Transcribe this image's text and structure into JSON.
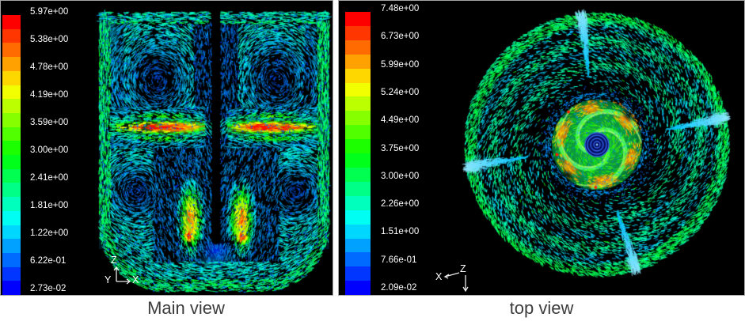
{
  "figure": {
    "background": "#ffffff",
    "panel_background": "#000000"
  },
  "panels": [
    {
      "caption": "Main view",
      "legend": {
        "values": [
          "5.97e+00",
          "5.38e+00",
          "4.78e+00",
          "4.19e+00",
          "3.59e+00",
          "3.00e+00",
          "2.41e+00",
          "1.81e+00",
          "1.22e+00",
          "6.22e-01",
          "2.73e-02"
        ]
      },
      "triad": {
        "z": "Z",
        "y": "Y",
        "x": "X"
      }
    },
    {
      "caption": "top view",
      "legend": {
        "values": [
          "7.48e+00",
          "6.73e+00",
          "5.99e+00",
          "5.24e+00",
          "4.49e+00",
          "3.75e+00",
          "3.00e+00",
          "2.26e+00",
          "1.51e+00",
          "7.66e-01",
          "2.09e-02"
        ]
      },
      "triad": {
        "x": "X",
        "z": "Z"
      }
    }
  ],
  "colors": {
    "legend_text": "#ffffff",
    "caption_text": "#3d3d3d",
    "colormap_max": "#ff0000",
    "colormap_mid": "#00ff00",
    "colormap_min": "#0000ff"
  },
  "chart_data": [
    {
      "type": "vector-field",
      "view": "Main view",
      "field": "velocity vectors colored by magnitude",
      "colormap": "rainbow, 20 discrete bands, blue = min, red = max",
      "scale_ticks": [
        5.97,
        5.38,
        4.78,
        4.19,
        3.59,
        3.0,
        2.41,
        1.81,
        1.22,
        0.622,
        0.0273
      ],
      "scale_min": 0.0273,
      "scale_max": 5.97,
      "axes_triad": [
        "Z up",
        "X right",
        "Y toward viewer"
      ],
      "features": [
        "radial impeller jets at mid-height, red/orange core fading to yellow-green toward walls",
        "central black shaft from top to jet region ending at ~80% depth",
        "four large recirculation loops with dark low-velocity cores",
        "green-yellow downward plumes with orange tips below the shaft end",
        "dark blue low-velocity pocket under shaft tip",
        "bright cyan high-velocity layer along tank walls and curved bottom"
      ]
    },
    {
      "type": "vector-field",
      "view": "top view",
      "field": "velocity vectors colored by magnitude",
      "colormap": "rainbow, 20 discrete bands, blue = min, red = max",
      "scale_ticks": [
        7.48,
        6.73,
        5.99,
        5.24,
        4.49,
        3.75,
        3.0,
        2.26,
        1.51,
        0.766,
        0.0209
      ],
      "scale_min": 0.0209,
      "scale_max": 7.48,
      "axes_triad": [
        "X toward left",
        "Z at origin",
        "downward arrow"
      ],
      "features": [
        "circular tank filled with tangential cyan/blue swirl vectors",
        "central impeller disc: green spiral arms, yellow-orange blade-tip lumps, dark navy core with concentric blue rings",
        "sparse dark-blue dotted moat between impeller disc and outer swirl",
        "four bright cyan comet-like baffle streaks near the wall, each with a royal-blue center line"
      ]
    }
  ]
}
